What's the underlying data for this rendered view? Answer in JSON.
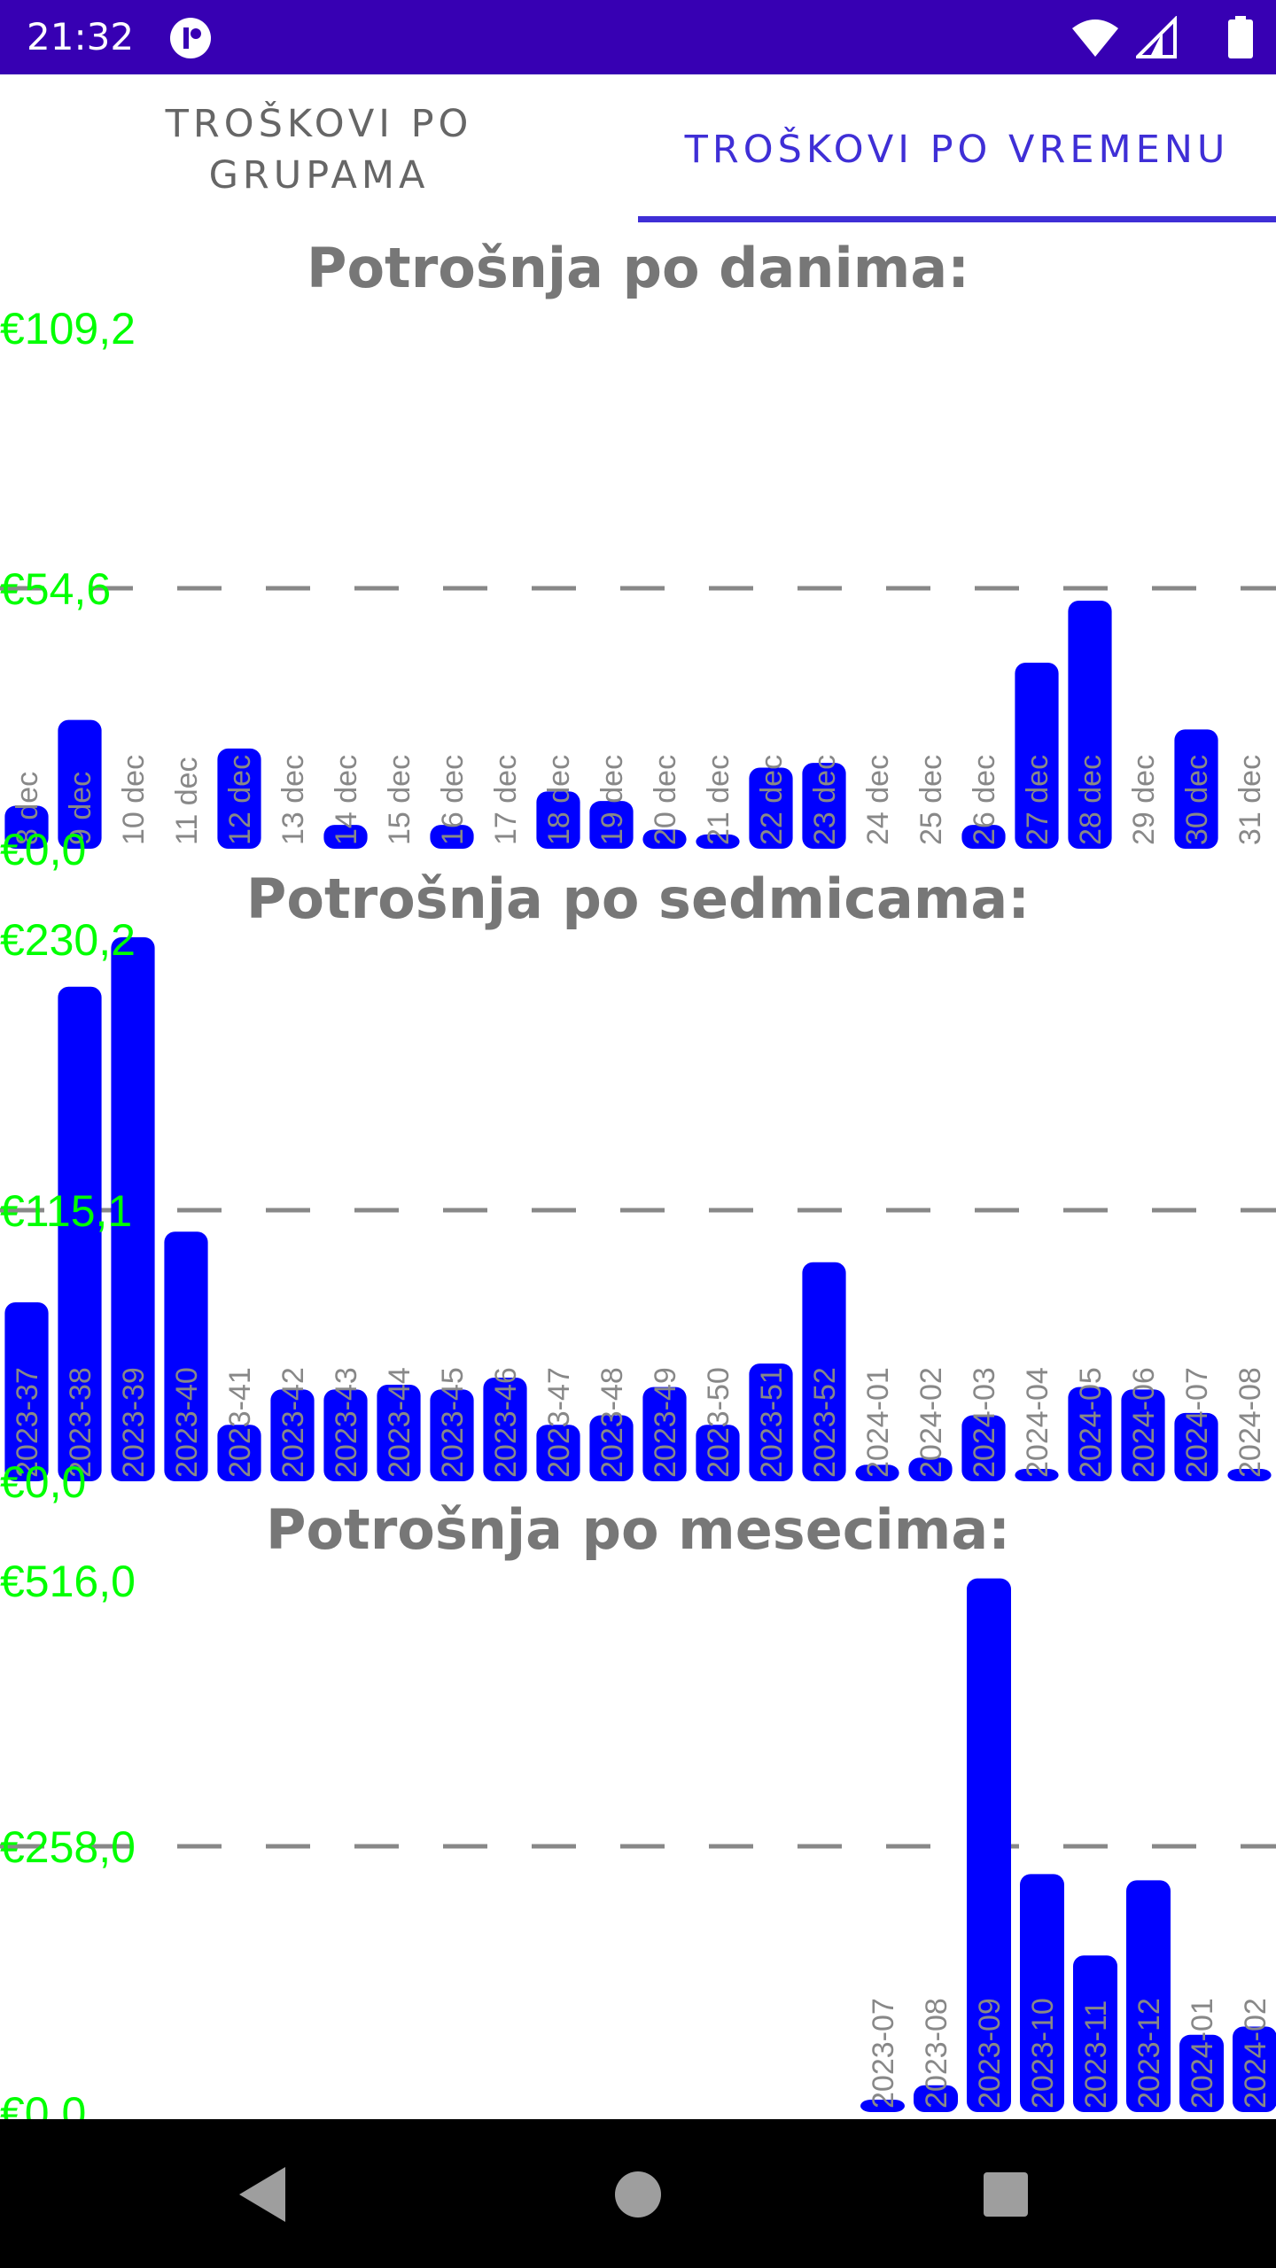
{
  "status_bar": {
    "time": "21:32",
    "icons": [
      "app-notification-icon",
      "wifi-icon",
      "cell-signal-icon",
      "battery-icon"
    ]
  },
  "tabs": [
    {
      "label": "TROŠKOVI PO GRUPAMA",
      "selected": false
    },
    {
      "label": "TROŠKOVI PO VREMENU",
      "selected": true
    }
  ],
  "colors": {
    "bar": "#0000ff",
    "axis_label": "#00ff00",
    "tick_label": "#888888",
    "gridline": "#888888",
    "accent": "#3f2fd6",
    "status_bar": "#3700b3"
  },
  "chart_data": [
    {
      "type": "bar",
      "title": "Potrošnja po danima:",
      "ylim": [
        0,
        109.2
      ],
      "y_tick_labels": [
        "€109,2",
        "€54,6",
        "€0,0"
      ],
      "gridline_at": 54.6,
      "categories": [
        "8 dec",
        "9 dec",
        "10 dec",
        "11 dec",
        "12 dec",
        "13 dec",
        "14 dec",
        "15 dec",
        "16 dec",
        "17 dec",
        "18 dec",
        "19 dec",
        "20 dec",
        "21 dec",
        "22 dec",
        "23 dec",
        "24 dec",
        "25 dec",
        "26 dec",
        "27 dec",
        "28 dec",
        "29 dec",
        "30 dec",
        "31 dec"
      ],
      "values": [
        9,
        27,
        0,
        0,
        21,
        0,
        5,
        0,
        5,
        0,
        12,
        10,
        4,
        3,
        17,
        18,
        0,
        0,
        5,
        39,
        52,
        0,
        25,
        0
      ]
    },
    {
      "type": "bar",
      "title": "Potrošnja po sedmicama:",
      "ylim": [
        0,
        230.2
      ],
      "y_tick_labels": [
        "€230,2",
        "€115,1",
        "€0,0"
      ],
      "gridline_at": 115.1,
      "categories": [
        "2023-37",
        "2023-38",
        "2023-39",
        "2023-40",
        "2023-41",
        "2023-42",
        "2023-43",
        "2023-44",
        "2023-45",
        "2023-46",
        "2023-47",
        "2023-48",
        "2023-49",
        "2023-50",
        "2023-51",
        "2023-52",
        "2024-01",
        "2024-02",
        "2024-03",
        "2024-04",
        "2024-05",
        "2024-06",
        "2024-07",
        "2024-08"
      ],
      "values": [
        76,
        210,
        231,
        106,
        24,
        39,
        39,
        41,
        39,
        44,
        24,
        28,
        40,
        24,
        50,
        93,
        7,
        10,
        28,
        4,
        40,
        39,
        29,
        1
      ]
    },
    {
      "type": "bar",
      "title": "Potrošnja po mesecima:",
      "ylim": [
        0,
        516.0
      ],
      "y_tick_labels": [
        "€516,0",
        "€258,0",
        "€0,0"
      ],
      "gridline_at": 258.0,
      "categories": [
        "2023-07",
        "2023-08",
        "2023-09",
        "2023-10",
        "2023-11",
        "2023-12",
        "2024-01",
        "2024-02"
      ],
      "values": [
        8,
        26,
        518,
        231,
        152,
        225,
        75,
        83
      ]
    }
  ]
}
